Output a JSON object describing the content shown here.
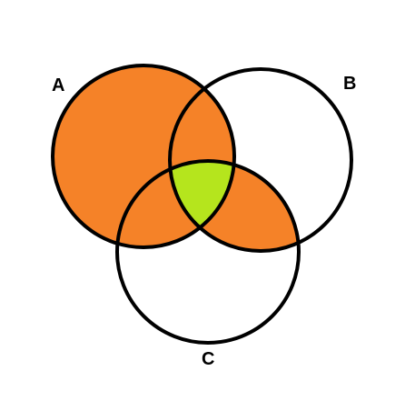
{
  "diagram": {
    "type": "venn",
    "sets": [
      {
        "id": "A",
        "label": "A"
      },
      {
        "id": "B",
        "label": "B"
      },
      {
        "id": "C",
        "label": "C"
      }
    ],
    "shaded_regions": [
      {
        "description": "A",
        "color": "#f58228"
      },
      {
        "description": "B ∩ C",
        "color": "#f58228"
      },
      {
        "description": "A ∩ B ∩ C",
        "color": "#b5e51d"
      }
    ],
    "outline_color": "#000000",
    "background_color": "#ffffff"
  }
}
